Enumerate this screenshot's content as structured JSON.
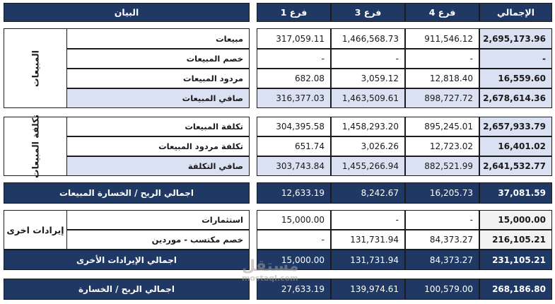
{
  "header": {
    "desc": "البيان",
    "b1": "فرع 1",
    "b3": "فرع 3",
    "b4": "فرع 4",
    "total": "الإجمالي"
  },
  "sales": {
    "group": "المبيعات",
    "rows": [
      {
        "label": "مبيعات",
        "b1": "317,059.11",
        "b3": "1,466,568.73",
        "b4": "911,546.12",
        "total": "2,695,173.96"
      },
      {
        "label": "خصم المبيعات",
        "b1": "-",
        "b3": "-",
        "b4": "-",
        "total": "-"
      },
      {
        "label": "مردود المبيعات",
        "b1": "682.08",
        "b3": "3,059.12",
        "b4": "12,818.40",
        "total": "16,559.60"
      },
      {
        "label": "صافي المبيعات",
        "b1": "316,377.03",
        "b3": "1,463,509.61",
        "b4": "898,727.72",
        "total": "2,678,614.36"
      }
    ]
  },
  "cost": {
    "group": "تكلفة المبيعات",
    "rows": [
      {
        "label": "تكلفة المبيعات",
        "b1": "304,395.58",
        "b3": "1,458,293.20",
        "b4": "895,245.01",
        "total": "2,657,933.79"
      },
      {
        "label": "تكلفة مردود المبيعات",
        "b1": "651.74",
        "b3": "3,026.26",
        "b4": "12,723.02",
        "total": "16,401.02"
      },
      {
        "label": "صافي التكلفة",
        "b1": "303,743.84",
        "b3": "1,455,266.94",
        "b4": "882,521.99",
        "total": "2,641,532.77"
      }
    ]
  },
  "gross": {
    "label": "اجمالي الربح / الخسارة المبيعات",
    "b1": "12,633.19",
    "b3": "8,242.67",
    "b4": "16,205.73",
    "total": "37,081.59"
  },
  "other": {
    "group": "إيرادات اخرى",
    "rows": [
      {
        "label": "استثمارات",
        "b1": "15,000.00",
        "b3": "-",
        "b4": "-",
        "total": "15,000.00"
      },
      {
        "label": "خصم مكتسب - موردين",
        "b1": "-",
        "b3": "131,731.94",
        "b4": "84,373.27",
        "total": "216,105.21"
      }
    ],
    "total_row": {
      "label": "اجمالي الإيرادات الأخرى",
      "b1": "15,000.00",
      "b3": "131,731.94",
      "b4": "84,373.27",
      "total": "231,105.21"
    }
  },
  "final": {
    "label": "اجمالي الربح / الخسارة",
    "b1": "27,633.19",
    "b3": "139,974.61",
    "b4": "100,579.00",
    "total": "268,186.80"
  },
  "watermark": {
    "brand": "مستقل",
    "site": "mostaql.com"
  }
}
